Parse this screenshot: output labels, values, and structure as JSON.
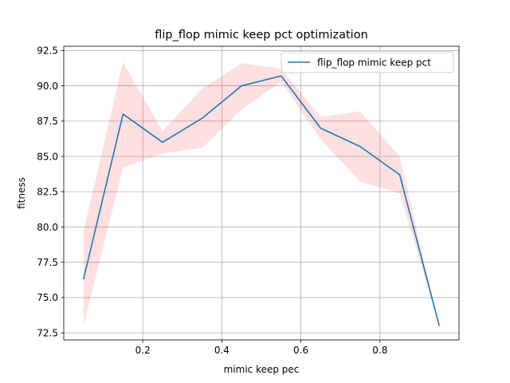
{
  "chart_data": {
    "type": "line",
    "title": "flip_flop mimic keep pct optimization",
    "xlabel": "mimic keep pec",
    "ylabel": "fitness",
    "xlim": [
      0.0,
      1.0
    ],
    "ylim": [
      72.0,
      92.8
    ],
    "xticks": [
      0.2,
      0.4,
      0.6,
      0.8
    ],
    "xtick_labels": [
      "0.2",
      "0.4",
      "0.6",
      "0.8"
    ],
    "yticks": [
      72.5,
      75.0,
      77.5,
      80.0,
      82.5,
      85.0,
      87.5,
      90.0,
      92.5
    ],
    "ytick_labels": [
      "72.5",
      "75.0",
      "77.5",
      "80.0",
      "82.5",
      "85.0",
      "87.5",
      "90.0",
      "92.5"
    ],
    "grid": true,
    "legend_position": "upper right",
    "series": [
      {
        "name": "flip_flop mimic keep pct",
        "color": "#1f77b4",
        "x": [
          0.05,
          0.15,
          0.25,
          0.35,
          0.45,
          0.55,
          0.65,
          0.75,
          0.85,
          0.95
        ],
        "y": [
          76.3,
          88.0,
          86.0,
          87.7,
          90.0,
          90.7,
          87.0,
          85.7,
          83.7,
          73.0
        ],
        "band_upper": [
          79.7,
          91.7,
          86.8,
          89.8,
          91.6,
          91.2,
          87.8,
          88.2,
          85.0,
          73.0
        ],
        "band_lower": [
          73.0,
          84.2,
          85.2,
          85.6,
          88.3,
          90.3,
          86.2,
          83.2,
          82.4,
          73.0
        ],
        "band_color": "#ff0000"
      }
    ]
  }
}
